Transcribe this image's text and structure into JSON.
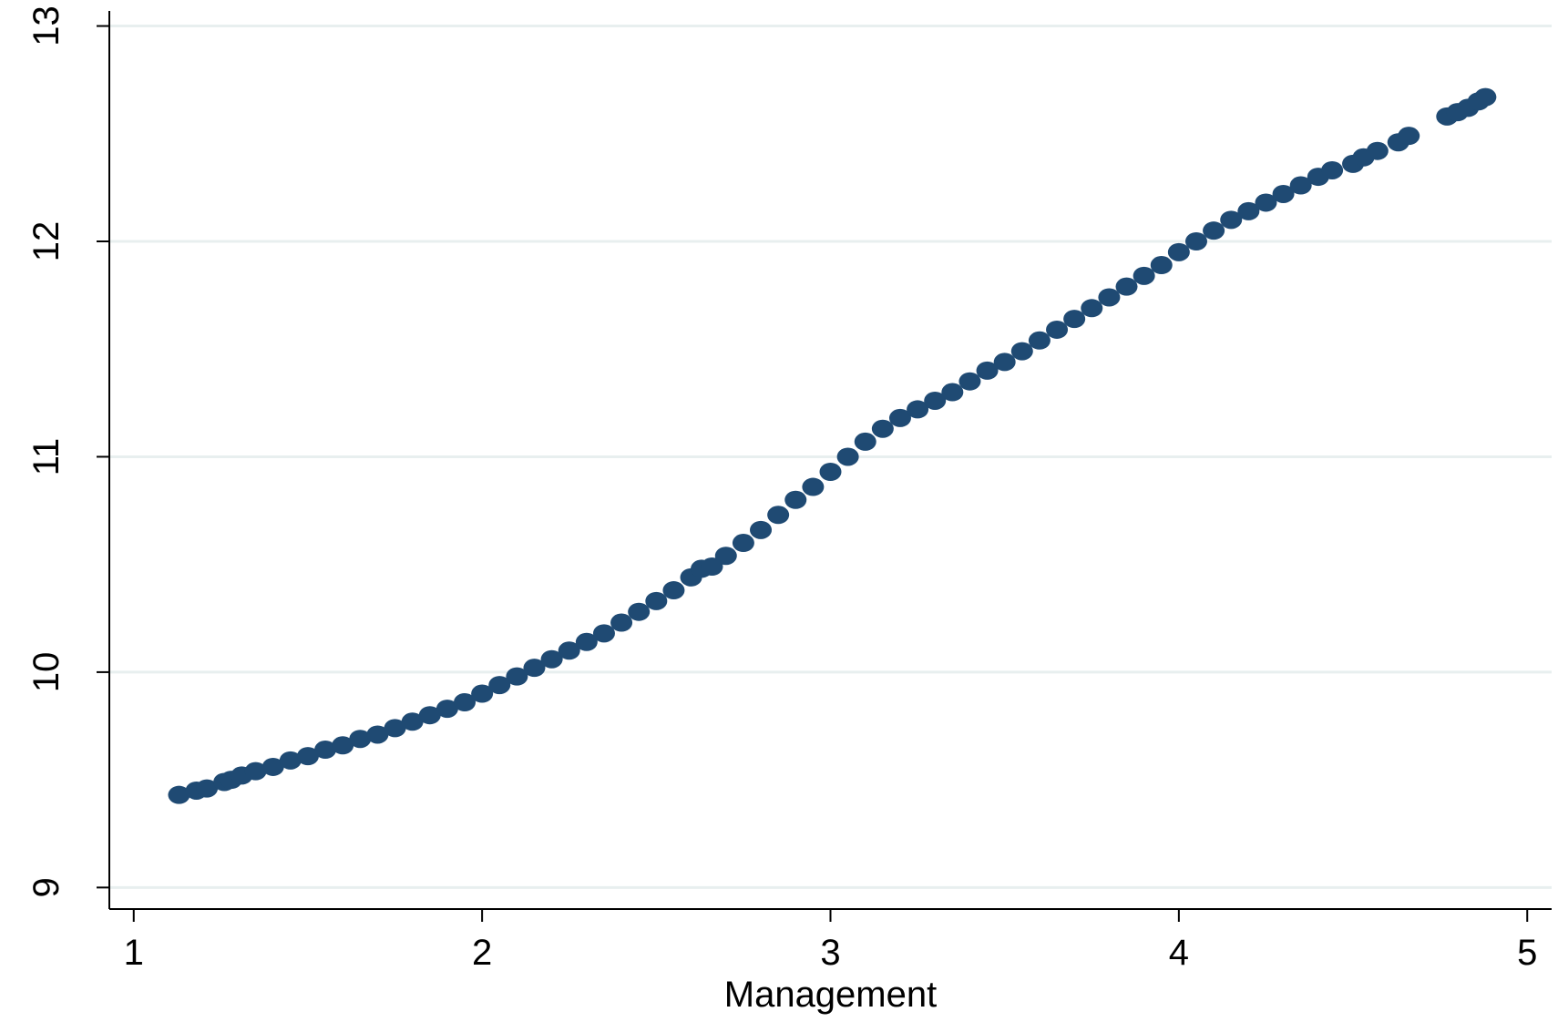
{
  "chart_data": {
    "type": "scatter",
    "title": "",
    "xlabel": "Management",
    "ylabel": "",
    "xlim": [
      0.93,
      5.07
    ],
    "ylim": [
      8.9,
      13.07
    ],
    "xticks": [
      1,
      2,
      3,
      4,
      5
    ],
    "yticks": [
      9,
      10,
      11,
      12,
      13
    ],
    "xtick_labels": [
      "1",
      "2",
      "3",
      "4",
      "5"
    ],
    "ytick_labels": [
      "9",
      "10",
      "11",
      "12",
      "13"
    ],
    "grid": "horizontal",
    "legend": "none",
    "colors": {
      "marker": "#1f4a73",
      "grid": "#e8efef",
      "axis": "#000000"
    },
    "series": [
      {
        "points": [
          [
            1.13,
            9.43
          ],
          [
            1.18,
            9.45
          ],
          [
            1.21,
            9.46
          ],
          [
            1.26,
            9.49
          ],
          [
            1.28,
            9.5
          ],
          [
            1.31,
            9.52
          ],
          [
            1.35,
            9.54
          ],
          [
            1.4,
            9.56
          ],
          [
            1.45,
            9.59
          ],
          [
            1.5,
            9.61
          ],
          [
            1.55,
            9.64
          ],
          [
            1.6,
            9.66
          ],
          [
            1.65,
            9.69
          ],
          [
            1.7,
            9.71
          ],
          [
            1.75,
            9.74
          ],
          [
            1.8,
            9.77
          ],
          [
            1.85,
            9.8
          ],
          [
            1.9,
            9.83
          ],
          [
            1.95,
            9.86
          ],
          [
            2.0,
            9.9
          ],
          [
            2.05,
            9.94
          ],
          [
            2.1,
            9.98
          ],
          [
            2.15,
            10.02
          ],
          [
            2.2,
            10.06
          ],
          [
            2.25,
            10.1
          ],
          [
            2.3,
            10.14
          ],
          [
            2.35,
            10.18
          ],
          [
            2.4,
            10.23
          ],
          [
            2.45,
            10.28
          ],
          [
            2.5,
            10.33
          ],
          [
            2.55,
            10.38
          ],
          [
            2.6,
            10.44
          ],
          [
            2.63,
            10.48
          ],
          [
            2.66,
            10.49
          ],
          [
            2.7,
            10.54
          ],
          [
            2.75,
            10.6
          ],
          [
            2.8,
            10.66
          ],
          [
            2.85,
            10.73
          ],
          [
            2.9,
            10.8
          ],
          [
            2.95,
            10.86
          ],
          [
            3.0,
            10.93
          ],
          [
            3.05,
            11.0
          ],
          [
            3.1,
            11.07
          ],
          [
            3.15,
            11.13
          ],
          [
            3.2,
            11.18
          ],
          [
            3.25,
            11.22
          ],
          [
            3.3,
            11.26
          ],
          [
            3.35,
            11.3
          ],
          [
            3.4,
            11.35
          ],
          [
            3.45,
            11.4
          ],
          [
            3.5,
            11.44
          ],
          [
            3.55,
            11.49
          ],
          [
            3.6,
            11.54
          ],
          [
            3.65,
            11.59
          ],
          [
            3.7,
            11.64
          ],
          [
            3.75,
            11.69
          ],
          [
            3.8,
            11.74
          ],
          [
            3.85,
            11.79
          ],
          [
            3.9,
            11.84
          ],
          [
            3.95,
            11.89
          ],
          [
            4.0,
            11.95
          ],
          [
            4.05,
            12.0
          ],
          [
            4.1,
            12.05
          ],
          [
            4.15,
            12.1
          ],
          [
            4.2,
            12.14
          ],
          [
            4.25,
            12.18
          ],
          [
            4.3,
            12.22
          ],
          [
            4.35,
            12.26
          ],
          [
            4.4,
            12.3
          ],
          [
            4.44,
            12.33
          ],
          [
            4.5,
            12.36
          ],
          [
            4.53,
            12.39
          ],
          [
            4.57,
            12.42
          ],
          [
            4.63,
            12.46
          ],
          [
            4.66,
            12.49
          ],
          [
            4.77,
            12.58
          ],
          [
            4.8,
            12.6
          ],
          [
            4.83,
            12.62
          ],
          [
            4.86,
            12.65
          ],
          [
            4.88,
            12.67
          ]
        ]
      }
    ]
  }
}
